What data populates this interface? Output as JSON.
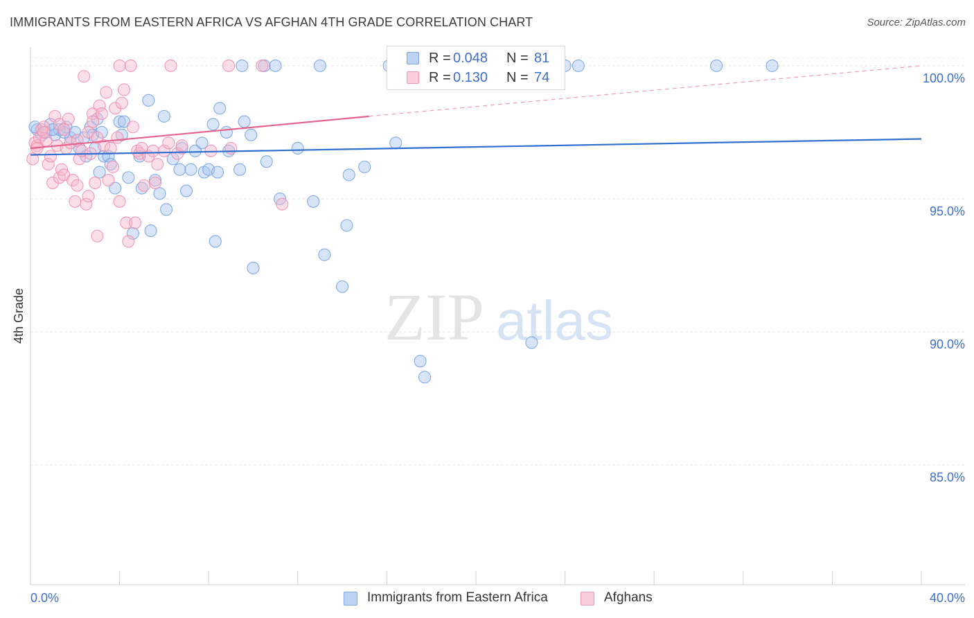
{
  "title": "IMMIGRANTS FROM EASTERN AFRICA VS AFGHAN 4TH GRADE CORRELATION CHART",
  "source": "Source: ZipAtlas.com",
  "watermark": {
    "part1": "ZIP",
    "part2": "atlas"
  },
  "legend_stats": [
    {
      "r_label": "R =",
      "r_value": "0.048",
      "n_label": "N =",
      "n_value": "81",
      "color": "#a9c4ee"
    },
    {
      "r_label": "R =",
      "r_value": "0.130",
      "n_label": "N =",
      "n_value": "74",
      "color": "#f6b8cb"
    }
  ],
  "chart_data": {
    "type": "scatter",
    "title": "IMMIGRANTS FROM EASTERN AFRICA VS AFGHAN 4TH GRADE CORRELATION CHART",
    "xlabel": "",
    "ylabel": "4th Grade",
    "xlim": [
      0,
      40
    ],
    "ylim": [
      80.5,
      100.7
    ],
    "x_tick_labels": [
      "0.0%",
      "40.0%"
    ],
    "y_ticks": [
      85,
      90,
      95,
      100
    ],
    "y_tick_labels": [
      "85.0%",
      "90.0%",
      "95.0%",
      "100.0%"
    ],
    "grid": true,
    "legend_position": "bottom-center",
    "series": [
      {
        "name": "Immigrants from Eastern Africa",
        "color": "#6f9fe0",
        "trend": {
          "x0": 0,
          "y0": 96.65,
          "x1": 40,
          "y1": 97.25,
          "style": "solid"
        },
        "points": [
          [
            0.3,
            97.6
          ],
          [
            0.5,
            97.4
          ],
          [
            0.7,
            97.5
          ],
          [
            0.9,
            97.8
          ],
          [
            1.1,
            97.4
          ],
          [
            1.3,
            97.6
          ],
          [
            1.6,
            97.7
          ],
          [
            1.8,
            97.3
          ],
          [
            2.0,
            97.5
          ],
          [
            2.2,
            96.9
          ],
          [
            2.5,
            96.6
          ],
          [
            2.7,
            97.7
          ],
          [
            2.8,
            97.4
          ],
          [
            2.9,
            96.9
          ],
          [
            3.1,
            96.0
          ],
          [
            3.3,
            96.6
          ],
          [
            3.2,
            97.5
          ],
          [
            3.0,
            98.0
          ],
          [
            3.5,
            96.6
          ],
          [
            3.6,
            96.3
          ],
          [
            3.8,
            95.4
          ],
          [
            4.0,
            97.9
          ],
          [
            4.1,
            97.4
          ],
          [
            4.2,
            97.9
          ],
          [
            4.4,
            95.8
          ],
          [
            4.6,
            93.7
          ],
          [
            4.9,
            96.6
          ],
          [
            5.0,
            95.4
          ],
          [
            5.3,
            98.7
          ],
          [
            5.4,
            93.8
          ],
          [
            5.6,
            95.7
          ],
          [
            5.8,
            95.2
          ],
          [
            6.0,
            98.1
          ],
          [
            6.1,
            94.6
          ],
          [
            6.4,
            96.5
          ],
          [
            6.7,
            96.1
          ],
          [
            6.8,
            96.9
          ],
          [
            7.0,
            95.3
          ],
          [
            7.2,
            96.1
          ],
          [
            7.4,
            96.8
          ],
          [
            7.7,
            97.1
          ],
          [
            7.8,
            96.0
          ],
          [
            8.0,
            96.1
          ],
          [
            8.2,
            97.8
          ],
          [
            8.4,
            96.0
          ],
          [
            8.3,
            93.4
          ],
          [
            8.5,
            98.4
          ],
          [
            8.8,
            97.5
          ],
          [
            8.9,
            96.8
          ],
          [
            9.5,
            100.0
          ],
          [
            9.4,
            96.1
          ],
          [
            9.6,
            97.9
          ],
          [
            9.9,
            97.4
          ],
          [
            10.0,
            92.4
          ],
          [
            10.5,
            100.0
          ],
          [
            10.6,
            96.4
          ],
          [
            11.0,
            100.0
          ],
          [
            11.2,
            95.0
          ],
          [
            12.0,
            96.9
          ],
          [
            12.7,
            94.9
          ],
          [
            13.0,
            100.0
          ],
          [
            13.2,
            92.9
          ],
          [
            14.0,
            91.7
          ],
          [
            14.2,
            94.0
          ],
          [
            14.3,
            95.9
          ],
          [
            15.0,
            96.2
          ],
          [
            16.1,
            100.0
          ],
          [
            16.4,
            97.1
          ],
          [
            17.5,
            88.9
          ],
          [
            17.7,
            88.3
          ],
          [
            18.0,
            100.0
          ],
          [
            20.0,
            100.0
          ],
          [
            22.5,
            89.6
          ],
          [
            24.0,
            100.0
          ],
          [
            24.6,
            100.0
          ],
          [
            30.8,
            100.0
          ],
          [
            33.3,
            100.0
          ],
          [
            1.0,
            97.6
          ],
          [
            1.5,
            97.5
          ],
          [
            2.4,
            97.3
          ],
          [
            0.2,
            97.7
          ]
        ]
      },
      {
        "name": "Afghans",
        "color": "#f08aaa",
        "trend": {
          "x0": 0,
          "y0": 96.9,
          "x1": 15.2,
          "y1": 98.1,
          "dash_x1": 40,
          "dash_y1": 100.0,
          "style": "solid-then-dashed"
        },
        "points": [
          [
            0.1,
            96.5
          ],
          [
            0.2,
            97.1
          ],
          [
            0.3,
            97.0
          ],
          [
            0.4,
            97.3
          ],
          [
            0.5,
            97.6
          ],
          [
            0.6,
            97.7
          ],
          [
            0.7,
            97.2
          ],
          [
            0.8,
            96.3
          ],
          [
            0.9,
            96.6
          ],
          [
            1.0,
            95.6
          ],
          [
            1.1,
            98.1
          ],
          [
            1.2,
            97.0
          ],
          [
            1.3,
            95.8
          ],
          [
            1.4,
            96.1
          ],
          [
            1.5,
            95.9
          ],
          [
            1.6,
            96.9
          ],
          [
            1.7,
            98.0
          ],
          [
            1.8,
            97.1
          ],
          [
            1.9,
            95.7
          ],
          [
            2.0,
            94.9
          ],
          [
            2.1,
            95.5
          ],
          [
            2.2,
            96.5
          ],
          [
            2.3,
            96.8
          ],
          [
            2.4,
            99.6
          ],
          [
            2.5,
            94.8
          ],
          [
            2.6,
            95.1
          ],
          [
            2.7,
            96.7
          ],
          [
            2.8,
            98.2
          ],
          [
            2.9,
            95.6
          ],
          [
            3.0,
            93.6
          ],
          [
            3.1,
            98.5
          ],
          [
            3.2,
            98.2
          ],
          [
            3.3,
            97.0
          ],
          [
            3.4,
            99.0
          ],
          [
            3.5,
            95.7
          ],
          [
            3.6,
            96.9
          ],
          [
            3.7,
            96.2
          ],
          [
            3.8,
            98.4
          ],
          [
            3.9,
            97.3
          ],
          [
            4.0,
            94.9
          ],
          [
            4.1,
            98.6
          ],
          [
            4.2,
            99.1
          ],
          [
            4.3,
            94.1
          ],
          [
            4.4,
            93.4
          ],
          [
            4.5,
            100.0
          ],
          [
            4.6,
            97.7
          ],
          [
            4.7,
            94.1
          ],
          [
            4.8,
            96.8
          ],
          [
            4.9,
            96.7
          ],
          [
            5.0,
            96.9
          ],
          [
            5.1,
            95.5
          ],
          [
            5.3,
            96.6
          ],
          [
            5.5,
            96.8
          ],
          [
            5.7,
            96.3
          ],
          [
            6.0,
            96.8
          ],
          [
            6.3,
            100.0
          ],
          [
            6.6,
            96.7
          ],
          [
            8.1,
            96.8
          ],
          [
            8.9,
            100.0
          ],
          [
            9.0,
            96.9
          ],
          [
            10.4,
            100.0
          ],
          [
            11.3,
            94.8
          ],
          [
            2.6,
            97.5
          ],
          [
            2.8,
            97.9
          ],
          [
            3.0,
            97.3
          ],
          [
            0.3,
            96.9
          ],
          [
            0.6,
            97.5
          ],
          [
            1.3,
            97.8
          ],
          [
            1.5,
            97.6
          ],
          [
            2.1,
            97.2
          ],
          [
            4.0,
            100.0
          ],
          [
            5.6,
            95.6
          ],
          [
            6.2,
            97.1
          ],
          [
            6.8,
            97.0
          ]
        ]
      }
    ]
  }
}
